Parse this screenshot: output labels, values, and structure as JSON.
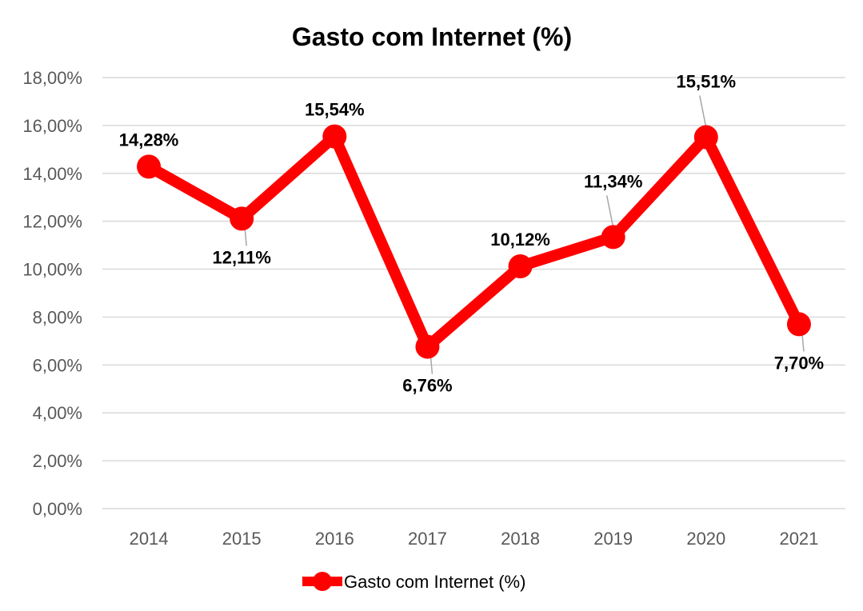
{
  "chart_data": {
    "type": "line",
    "title": "Gasto com Internet (%)",
    "categories": [
      "2014",
      "2015",
      "2016",
      "2017",
      "2018",
      "2019",
      "2020",
      "2021"
    ],
    "series": [
      {
        "name": "Gasto com Internet (%)",
        "values": [
          14.28,
          12.11,
          15.54,
          6.76,
          10.12,
          11.34,
          15.51,
          7.7
        ],
        "labels": [
          "14,28%",
          "12,11%",
          "15,54%",
          "6,76%",
          "10,12%",
          "11,34%",
          "15,51%",
          "7,70%"
        ]
      }
    ],
    "y_tick_labels": [
      "0,00%",
      "2,00%",
      "4,00%",
      "6,00%",
      "8,00%",
      "10,00%",
      "12,00%",
      "14,00%",
      "16,00%",
      "18,00%"
    ],
    "ylim": [
      0,
      18
    ],
    "ytick_step": 2,
    "grid": true,
    "legend_position": "bottom",
    "line_color": "#ff0000"
  }
}
